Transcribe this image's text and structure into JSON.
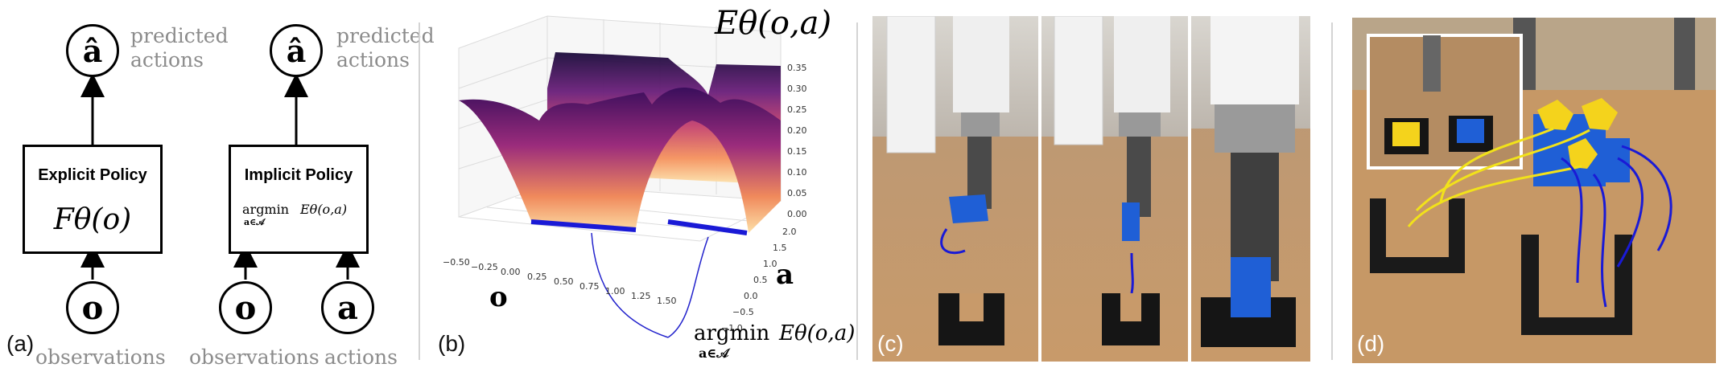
{
  "panel_a": {
    "label": "(a)",
    "explicit": {
      "output_symbol": "â",
      "output_label_1": "predicted",
      "output_label_2": "actions",
      "policy_title": "Explicit Policy",
      "policy_formula": "Fθ(o)",
      "input_symbol": "o",
      "input_label": "observations"
    },
    "implicit": {
      "output_symbol": "â",
      "output_label_1": "predicted",
      "output_label_2": "actions",
      "policy_title": "Implicit Policy",
      "argmin": "argmin",
      "argmin_sub": "a∈𝒜",
      "energy": "Eθ(o,a)",
      "input_obs_symbol": "o",
      "input_obs_label": "observations",
      "input_act_symbol": "a",
      "input_act_label": "actions"
    }
  },
  "panel_b": {
    "label": "(b)",
    "title": "Eθ(o,a)",
    "axis_o": "o",
    "axis_a": "a",
    "argmin": "argmin",
    "argmin_sub": "a∈𝒜",
    "energy": "Eθ(o,a)",
    "z_ticks": [
      "0.35",
      "0.30",
      "0.25",
      "0.20",
      "0.15",
      "0.10",
      "0.05",
      "0.00"
    ],
    "o_ticks": [
      "−0.50",
      "−0.25",
      "0.00",
      "0.25",
      "0.50",
      "0.75",
      "1.00",
      "1.25",
      "1.50"
    ],
    "a_ticks": [
      "2.0",
      "1.5",
      "1.0",
      "0.5",
      "0.0",
      "−0.5",
      "−1.0"
    ]
  },
  "panel_c": {
    "label": "(c)"
  },
  "panel_d": {
    "label": "(d)"
  },
  "colors": {
    "robot_blue": "#1f5fd6",
    "block_yellow": "#f4d31c",
    "path_blue": "#1a1ad6",
    "path_yellow": "#f2e21a",
    "table_wood": "#c89a6a"
  }
}
